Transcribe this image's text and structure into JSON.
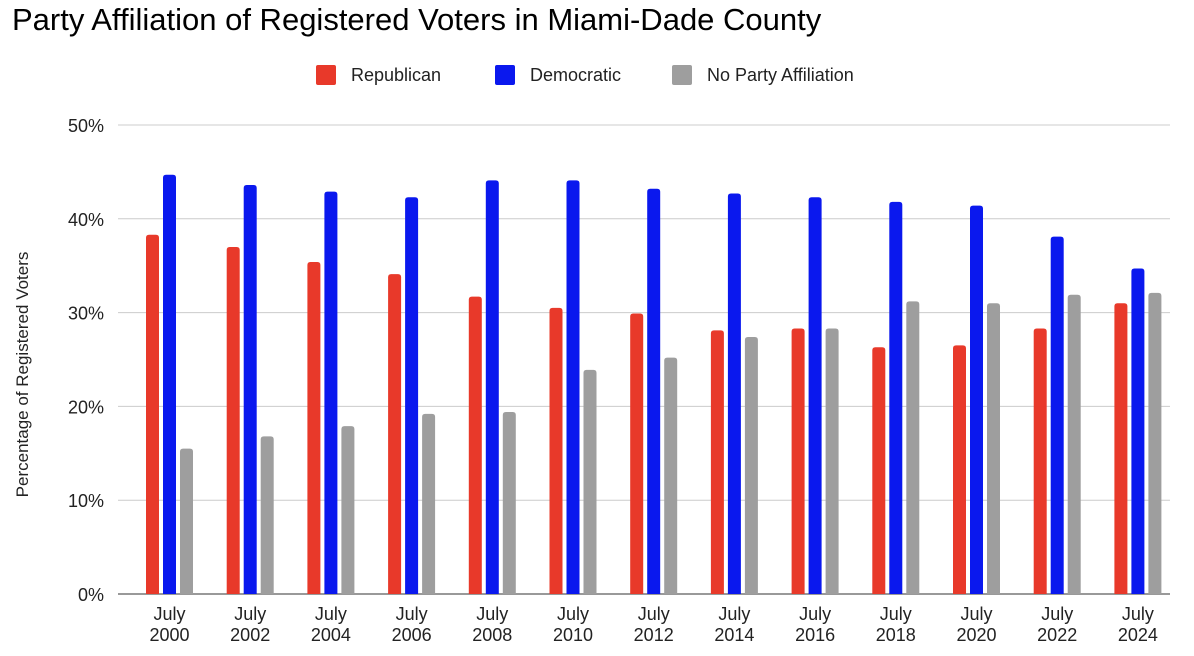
{
  "chart_data": {
    "type": "bar",
    "title": "Party Affiliation of Registered Voters in Miami-Dade County",
    "xlabel": "",
    "ylabel": "Percentage of Registered Voters",
    "ylim": [
      0,
      50
    ],
    "yticks": [
      "0%",
      "10%",
      "20%",
      "30%",
      "40%",
      "50%"
    ],
    "grid": true,
    "legend_position": "top-center",
    "categories": [
      [
        "July",
        "2000"
      ],
      [
        "July",
        "2002"
      ],
      [
        "July",
        "2004"
      ],
      [
        "July",
        "2006"
      ],
      [
        "July",
        "2008"
      ],
      [
        "July",
        "2010"
      ],
      [
        "July",
        "2012"
      ],
      [
        "July",
        "2014"
      ],
      [
        "July",
        "2016"
      ],
      [
        "July",
        "2018"
      ],
      [
        "July",
        "2020"
      ],
      [
        "July",
        "2022"
      ],
      [
        "July",
        "2024"
      ]
    ],
    "series": [
      {
        "name": "Republican",
        "color": "#e8392a",
        "values": [
          38.3,
          37.0,
          35.4,
          34.1,
          31.7,
          30.5,
          29.9,
          28.1,
          28.3,
          26.3,
          26.5,
          28.3,
          31.0
        ]
      },
      {
        "name": "Democratic",
        "color": "#0a18ee",
        "values": [
          44.7,
          43.6,
          42.9,
          42.3,
          44.1,
          44.1,
          43.2,
          42.7,
          42.3,
          41.8,
          41.4,
          38.1,
          34.7
        ]
      },
      {
        "name": "No Party Affiliation",
        "color": "#9e9e9e",
        "values": [
          15.5,
          16.8,
          17.9,
          19.2,
          19.4,
          23.9,
          25.2,
          27.4,
          28.3,
          31.2,
          31.0,
          31.9,
          32.1
        ]
      }
    ]
  }
}
